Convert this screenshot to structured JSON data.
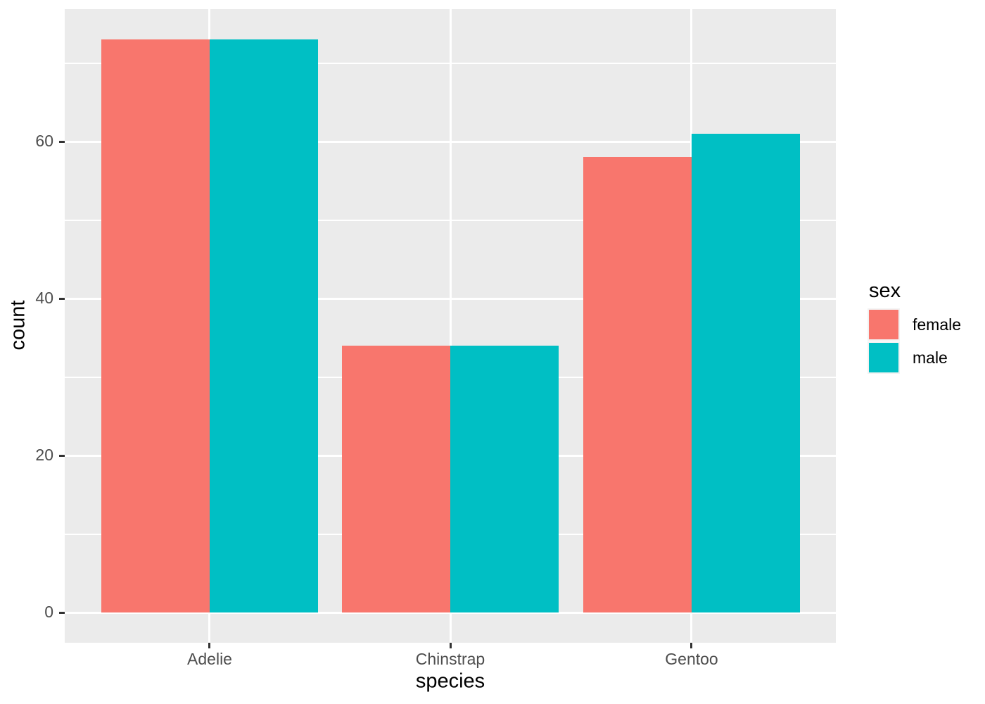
{
  "chart_data": {
    "type": "bar",
    "bar_layout": "dodge",
    "title": "",
    "xlabel": "species",
    "ylabel": "count",
    "categories": [
      "Adelie",
      "Chinstrap",
      "Gentoo"
    ],
    "series": [
      {
        "name": "female",
        "color": "#F8766D",
        "values": [
          73,
          34,
          58
        ]
      },
      {
        "name": "male",
        "color": "#00BFC4",
        "values": [
          73,
          34,
          61
        ]
      }
    ],
    "legend_title": "sex",
    "legend_position": "right",
    "yticks": [
      0,
      20,
      40,
      60
    ],
    "yticks_minor": [
      10,
      30,
      50,
      70
    ],
    "ylim": [
      -3.65,
      76.65
    ],
    "grid": true
  },
  "colors": {
    "panel_bg": "#EBEBEB",
    "grid": "#FFFFFF",
    "tick_text": "#4D4D4D",
    "tick_mark": "#333333",
    "title_text": "#000000"
  }
}
